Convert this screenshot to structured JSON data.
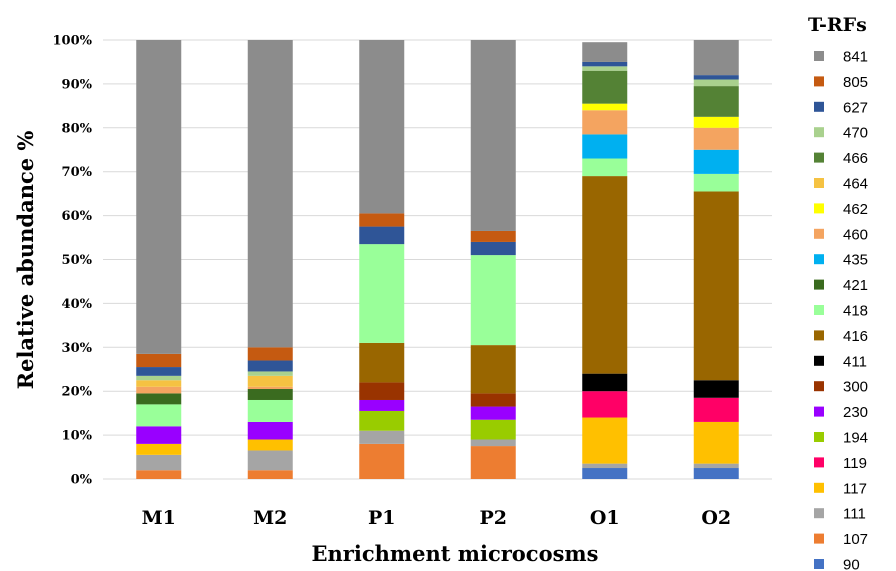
{
  "chart_data": {
    "type": "bar",
    "stacked": true,
    "title": "",
    "xlabel": "Enrichment  microcosms",
    "ylabel": "Relative abundance %",
    "ylim": [
      0,
      100
    ],
    "yticks": [
      "0%",
      "10%",
      "20%",
      "30%",
      "40%",
      "50%",
      "60%",
      "70%",
      "80%",
      "90%",
      "100%"
    ],
    "grid": true,
    "legend_title": "T-RFs",
    "legend_position": "right",
    "categories": [
      "M1",
      "M2",
      "P1",
      "P2",
      "O1",
      "O2"
    ],
    "series": [
      {
        "name": "90",
        "color": "#4472C4",
        "values": [
          0,
          0,
          0,
          0,
          2.5,
          2.5
        ]
      },
      {
        "name": "107",
        "color": "#ED7D31",
        "values": [
          2,
          2,
          8,
          7.5,
          0,
          0
        ]
      },
      {
        "name": "111",
        "color": "#A5A5A5",
        "values": [
          3.5,
          4.5,
          3,
          1.5,
          1,
          1
        ]
      },
      {
        "name": "117",
        "color": "#FFC000",
        "values": [
          2.5,
          2.5,
          0,
          0,
          10.5,
          9.5
        ]
      },
      {
        "name": "119",
        "color": "#FF0066",
        "values": [
          0,
          0,
          0,
          0,
          6,
          5.5
        ]
      },
      {
        "name": "194",
        "color": "#99CC00",
        "values": [
          0,
          0,
          4.5,
          4.5,
          0,
          0
        ]
      },
      {
        "name": "230",
        "color": "#9900FF",
        "values": [
          4,
          4,
          2.5,
          3,
          0,
          0
        ]
      },
      {
        "name": "300",
        "color": "#993300",
        "values": [
          0,
          0,
          4,
          3,
          0,
          0
        ]
      },
      {
        "name": "411",
        "color": "#000000",
        "values": [
          0,
          0,
          0,
          0,
          4,
          4
        ]
      },
      {
        "name": "416",
        "color": "#996600",
        "values": [
          0,
          0,
          9,
          11,
          45,
          43
        ]
      },
      {
        "name": "418",
        "color": "#99FF99",
        "values": [
          5,
          5,
          22.5,
          20.5,
          4,
          4
        ]
      },
      {
        "name": "421",
        "color": "#3A6B1F",
        "values": [
          2.5,
          2.5,
          0,
          0,
          0,
          0
        ]
      },
      {
        "name": "435",
        "color": "#00B0F0",
        "values": [
          0,
          0,
          0,
          0,
          5.5,
          5.5
        ]
      },
      {
        "name": "460",
        "color": "#F4A460",
        "values": [
          1.5,
          0.5,
          0,
          0,
          5.5,
          5
        ]
      },
      {
        "name": "462",
        "color": "#FFFF00",
        "values": [
          0,
          0,
          0,
          0,
          1.5,
          2.5
        ]
      },
      {
        "name": "464",
        "color": "#F5C242",
        "values": [
          1.5,
          2.5,
          0,
          0,
          0,
          0
        ]
      },
      {
        "name": "466",
        "color": "#548235",
        "values": [
          0,
          0,
          0,
          0,
          7.5,
          7
        ]
      },
      {
        "name": "470",
        "color": "#A9D18E",
        "values": [
          1,
          1,
          0,
          0,
          1,
          1.5
        ]
      },
      {
        "name": "627",
        "color": "#2F5597",
        "values": [
          2,
          2.5,
          4,
          3,
          1,
          1
        ]
      },
      {
        "name": "805",
        "color": "#C55A11",
        "values": [
          3,
          3,
          3,
          2.5,
          0,
          0
        ]
      },
      {
        "name": "841",
        "color": "#8C8C8C",
        "values": [
          71.5,
          70,
          39.5,
          43.5,
          4.5,
          8
        ]
      }
    ]
  }
}
